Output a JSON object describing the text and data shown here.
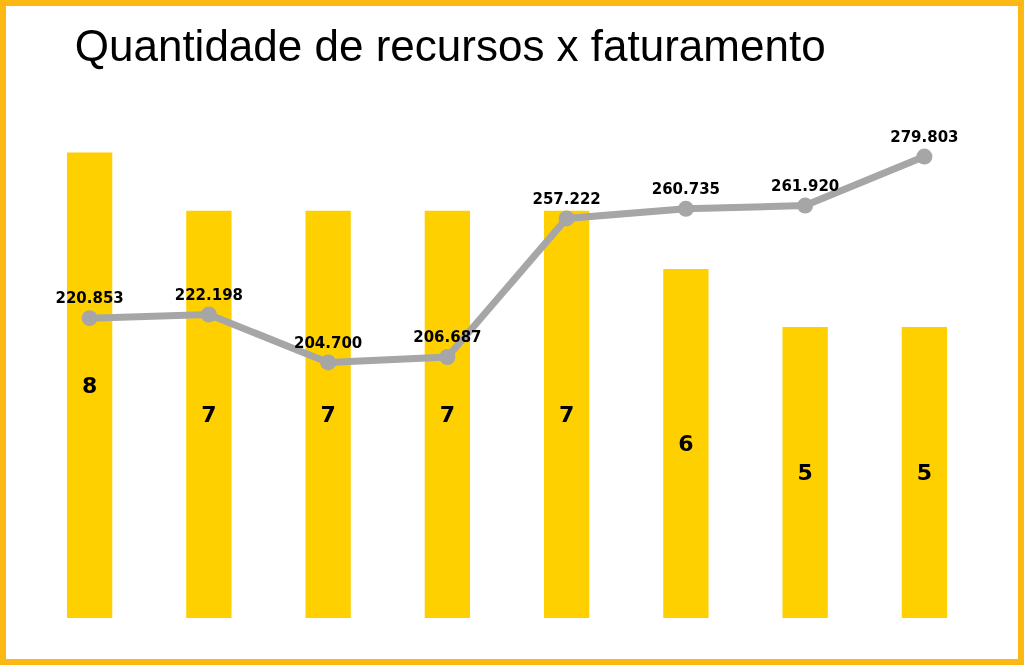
{
  "chart_data": [
    {
      "type": "bar",
      "title": "Quantidade de recursos x faturamento",
      "categories": [
        null,
        null,
        null,
        null,
        null,
        null,
        null,
        null
      ],
      "color": "#ffd000",
      "values": [
        8,
        7,
        7,
        7,
        7,
        6,
        5,
        5
      ],
      "data_labels": true,
      "legend": false,
      "grid": false,
      "tick_labels": false
    },
    {
      "type": "line",
      "categories": [
        null,
        null,
        null,
        null,
        null,
        null,
        null,
        null
      ],
      "color": "#a6a6a6",
      "values": [
        220.853,
        222.198,
        204.7,
        206.687,
        257.222,
        260.735,
        261.92,
        279.803
      ],
      "value_labels": [
        "220.853",
        "222.198",
        "204.700",
        "206.687",
        "257.222",
        "260.735",
        "261.920",
        "279.803"
      ],
      "marker": "circle",
      "legend": false,
      "grid": false,
      "tick_labels": false
    }
  ]
}
